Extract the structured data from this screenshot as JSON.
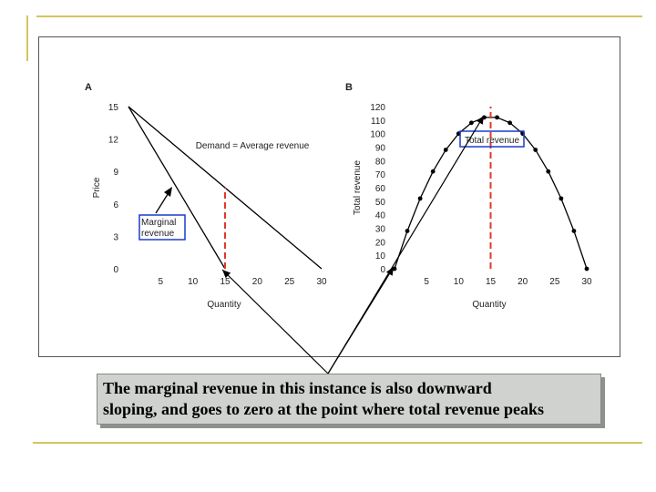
{
  "caption": {
    "line1": "The marginal revenue in this instance is also downward",
    "line2": "sloping, and goes to zero at the point where total revenue peaks"
  },
  "colors": {
    "decor_rule": "#d4c55c",
    "peak_marker": "#e0392b",
    "label_box": "#1a3ccc",
    "caption_bg": "#cfd2cf",
    "lines": "#000000"
  },
  "chart_data": [
    {
      "panel": "A",
      "type": "line",
      "xlabel": "Quantity",
      "ylabel": "Price",
      "xlim": [
        0,
        30
      ],
      "ylim": [
        0,
        15
      ],
      "xticks": [
        5,
        10,
        15,
        20,
        25,
        30
      ],
      "yticks": [
        0,
        3,
        6,
        9,
        12,
        15
      ],
      "series": [
        {
          "name": "Demand = Average revenue",
          "x": [
            0,
            30
          ],
          "y": [
            15,
            0
          ]
        },
        {
          "name": "Marginal revenue",
          "x": [
            0,
            15
          ],
          "y": [
            15,
            0
          ]
        }
      ],
      "marker_line": {
        "x": 15,
        "y_from": 0,
        "y_to": 7.5
      },
      "demand_label": "Demand = Average revenue",
      "mr_label_line1": "Marginal",
      "mr_label_line2": "revenue",
      "grid": false
    },
    {
      "panel": "B",
      "type": "line",
      "xlabel": "Quantity",
      "ylabel": "Total revenue",
      "xlim": [
        0,
        30
      ],
      "ylim": [
        0,
        120
      ],
      "xticks": [
        5,
        10,
        15,
        20,
        25,
        30
      ],
      "yticks": [
        0,
        10,
        20,
        30,
        40,
        50,
        60,
        70,
        80,
        90,
        100,
        110,
        120
      ],
      "series": [
        {
          "name": "Total revenue",
          "x": [
            0,
            2,
            4,
            6,
            8,
            10,
            12,
            14,
            16,
            18,
            20,
            22,
            24,
            26,
            28,
            30
          ],
          "y": [
            0,
            28,
            52,
            72,
            88,
            100,
            108,
            112,
            112,
            108,
            100,
            88,
            72,
            52,
            28,
            0
          ]
        }
      ],
      "marker_line": {
        "x": 15,
        "y_from": 0,
        "y_to": 120
      },
      "tr_label": "Total revenue",
      "grid": false
    }
  ]
}
